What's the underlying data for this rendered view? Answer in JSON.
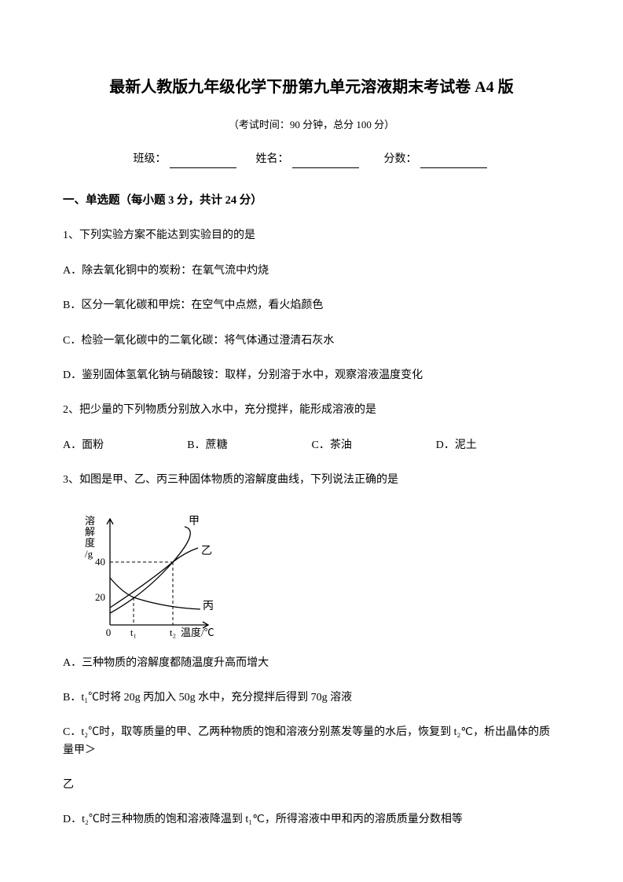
{
  "title": "最新人教版九年级化学下册第九单元溶液期末考试卷 A4 版",
  "subtitle": "（考试时间：90 分钟，总分 100 分）",
  "info": {
    "class_label": "班级：",
    "name_label": "姓名：",
    "score_label": "分数："
  },
  "section1": {
    "header": "一、单选题（每小题 3 分，共计 24 分）",
    "q1": {
      "stem": "1、下列实验方案不能达到实验目的的是",
      "a": "A．除去氧化铜中的炭粉：在氧气流中灼烧",
      "b": "B．区分一氧化碳和甲烷：在空气中点燃，看火焰颜色",
      "c": "C．检验一氧化碳中的二氧化碳：将气体通过澄清石灰水",
      "d": "D．鉴别固体氢氧化钠与硝酸铵：取样，分别溶于水中，观察溶液温度变化"
    },
    "q2": {
      "stem": "2、把少量的下列物质分别放入水中，充分搅拌，能形成溶液的是",
      "a": "A．面粉",
      "b": "B．蔗糖",
      "c": "C．茶油",
      "d": "D．泥土"
    },
    "q3": {
      "stem": "3、如图是甲、乙、丙三种固体物质的溶解度曲线，下列说法正确的是",
      "a": "A．三种物质的溶解度都随温度升高而增大",
      "b": "B．t₁℃时将 20g 丙加入 50g 水中，充分搅拌后得到 70g 溶液",
      "c_prefix": "C．t₂℃时，取等质量的甲、乙两种物质的饱和溶液分别蒸发等量的水后，恢复到 t₂℃，析出晶体的质量甲＞",
      "c_suffix": "乙",
      "d": "D．t₂℃时三种物质的饱和溶液降温到 t₁℃，所得溶液中甲和丙的溶质质量分数相等"
    }
  },
  "chart": {
    "y_label": "溶解度/g",
    "x_label": "温度/℃",
    "y_ticks": [
      "20",
      "40"
    ],
    "x_ticks": [
      "0",
      "t₁",
      "t₂"
    ],
    "curves": {
      "jia": "甲",
      "yi": "乙",
      "bing": "丙"
    },
    "colors": {
      "axis": "#000000",
      "dash": "#000000",
      "curve": "#000000",
      "text": "#000000"
    },
    "stroke_width": 1.3
  }
}
